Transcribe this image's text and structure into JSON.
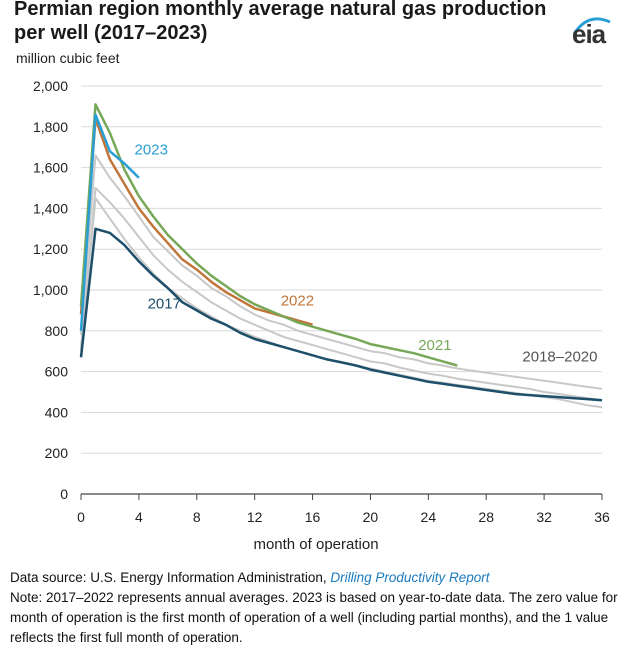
{
  "header": {
    "title": "Permian region monthly average natural gas production per well (2017–2023)",
    "units": "million cubic feet",
    "logo": "eia"
  },
  "footer": {
    "source_prefix": "Data source: U.S. Energy Information Administration, ",
    "source_link": "Drilling Productivity Report",
    "note": "Note: 2017–2022 represents annual averages. 2023 is based on year-to-date data. The zero value for month of operation is the first month of operation of a well (including partial months), and the 1 value reflects the first full month of operation."
  },
  "chart_data": {
    "type": "line",
    "xlabel": "month of operation",
    "ylabel": "million cubic feet",
    "xlim": [
      0,
      36
    ],
    "ylim": [
      0,
      2000
    ],
    "xticks": [
      0,
      4,
      8,
      12,
      16,
      20,
      24,
      28,
      32,
      36
    ],
    "yticks": [
      0,
      200,
      400,
      600,
      800,
      1000,
      1200,
      1400,
      1600,
      1800,
      2000
    ],
    "ytick_labels": [
      "0",
      "200",
      "400",
      "600",
      "800",
      "1,000",
      "1,200",
      "1,400",
      "1,600",
      "1,800",
      "2,000"
    ],
    "grid": "horizontal",
    "series": [
      {
        "name": "2018–2020",
        "color": "#c8c8c8",
        "label_at": [
          30.5,
          650
        ],
        "x": [
          0,
          1,
          2,
          3,
          4,
          5,
          6,
          7,
          8,
          9,
          10,
          11,
          12,
          13,
          14,
          15,
          16,
          17,
          18,
          19,
          20,
          21,
          22,
          23,
          24,
          25,
          26,
          27,
          28,
          29,
          30,
          31,
          32,
          33,
          34,
          35,
          36
        ],
        "y": [
          780,
          1660,
          1550,
          1460,
          1360,
          1260,
          1190,
          1120,
          1070,
          1010,
          970,
          920,
          880,
          850,
          830,
          800,
          780,
          760,
          740,
          720,
          700,
          690,
          670,
          660,
          640,
          630,
          615,
          605,
          595,
          585,
          575,
          565,
          555,
          545,
          535,
          525,
          515
        ]
      },
      {
        "name": "",
        "color": "#c8c8c8",
        "x": [
          0,
          1,
          2,
          3,
          4,
          5,
          6,
          7,
          8,
          9,
          10,
          11,
          12,
          13,
          14,
          15,
          16,
          17,
          18,
          19,
          20,
          21,
          22,
          23,
          24,
          25,
          26,
          27,
          28,
          29,
          30,
          31,
          32,
          33,
          34,
          35,
          36
        ],
        "y": [
          700,
          1500,
          1430,
          1350,
          1260,
          1170,
          1100,
          1040,
          990,
          940,
          900,
          860,
          830,
          800,
          770,
          750,
          730,
          710,
          690,
          670,
          650,
          640,
          620,
          605,
          590,
          580,
          565,
          555,
          545,
          535,
          525,
          515,
          500,
          490,
          480,
          470,
          460
        ]
      },
      {
        "name": "",
        "color": "#c8c8c8",
        "x": [
          0,
          1,
          2,
          3,
          4,
          5,
          6,
          7,
          8,
          9,
          10,
          11,
          12,
          13,
          14,
          15,
          16,
          17,
          18,
          19,
          20,
          21,
          22,
          23,
          24,
          25,
          26,
          27,
          28,
          29,
          30,
          31,
          32,
          33,
          34,
          35,
          36
        ],
        "y": [
          720,
          1450,
          1350,
          1250,
          1160,
          1080,
          1010,
          960,
          910,
          870,
          830,
          800,
          770,
          745,
          720,
          700,
          680,
          660,
          645,
          630,
          615,
          600,
          585,
          570,
          555,
          545,
          535,
          525,
          515,
          505,
          495,
          485,
          475,
          465,
          450,
          435,
          425
        ]
      },
      {
        "name": "2017",
        "color": "#1d4f6a",
        "label_at": [
          4.6,
          910
        ],
        "x": [
          0,
          1,
          2,
          3,
          4,
          5,
          6,
          7,
          8,
          9,
          10,
          11,
          12,
          13,
          14,
          15,
          16,
          17,
          18,
          19,
          20,
          21,
          22,
          23,
          24,
          25,
          26,
          27,
          28,
          29,
          30,
          31,
          32,
          33,
          34,
          35,
          36
        ],
        "y": [
          670,
          1300,
          1280,
          1220,
          1140,
          1070,
          1010,
          940,
          900,
          860,
          830,
          790,
          760,
          740,
          720,
          700,
          680,
          660,
          645,
          630,
          610,
          595,
          580,
          565,
          550,
          540,
          530,
          520,
          510,
          500,
          490,
          485,
          480,
          475,
          470,
          465,
          460
        ]
      },
      {
        "name": "2022",
        "color": "#c0763a",
        "label_at": [
          13.8,
          925
        ],
        "x": [
          0,
          1,
          2,
          3,
          4,
          5,
          6,
          7,
          8,
          9,
          10,
          11,
          12,
          13,
          14,
          15,
          16
        ],
        "y": [
          880,
          1840,
          1640,
          1520,
          1400,
          1310,
          1230,
          1150,
          1100,
          1040,
          990,
          950,
          910,
          890,
          870,
          850,
          830
        ]
      },
      {
        "name": "2021",
        "color": "#77a858",
        "label_at": [
          23.3,
          705
        ],
        "x": [
          0,
          1,
          2,
          3,
          4,
          5,
          6,
          7,
          8,
          9,
          10,
          11,
          12,
          13,
          14,
          15,
          16,
          17,
          18,
          19,
          20,
          21,
          22,
          23,
          24,
          25,
          26
        ],
        "y": [
          920,
          1910,
          1770,
          1590,
          1460,
          1360,
          1270,
          1200,
          1130,
          1070,
          1020,
          970,
          930,
          900,
          870,
          840,
          820,
          800,
          780,
          760,
          735,
          720,
          705,
          690,
          670,
          650,
          630
        ]
      },
      {
        "name": "2023",
        "color": "#2a9fd6",
        "label_at": [
          3.7,
          1665
        ],
        "x": [
          0,
          1,
          2,
          3,
          4
        ],
        "y": [
          800,
          1860,
          1680,
          1620,
          1550
        ]
      }
    ]
  }
}
